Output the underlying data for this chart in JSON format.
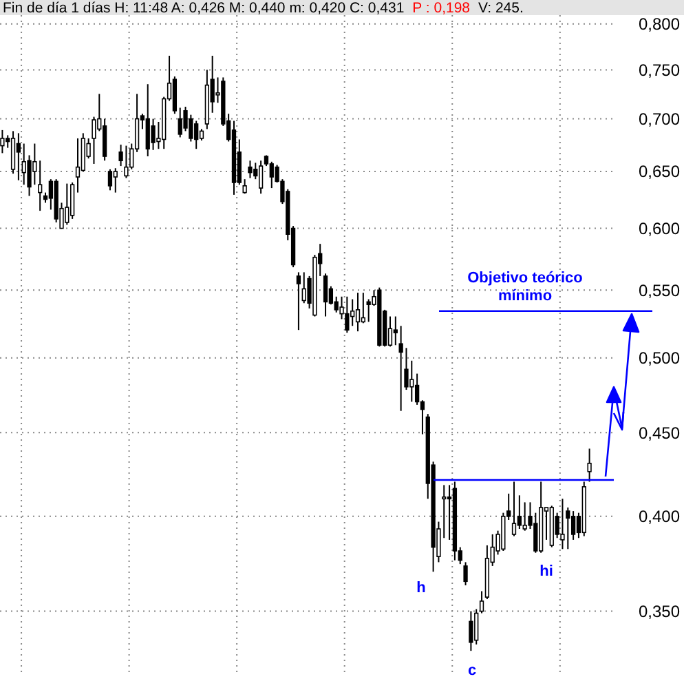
{
  "chart_data": {
    "type": "candlestick",
    "title": "Fin de día 1 días H: 11:48 A: 0,426 M: 0,440 m: 0,420 C: 0,431",
    "annotations": [
      "P : 0,198",
      "V: 245.",
      "h",
      "c",
      "hi"
    ],
    "categories": [
      null,
      null,
      null,
      null,
      null,
      null,
      null,
      null,
      null,
      null,
      null,
      null,
      null,
      null,
      null,
      null,
      null,
      null,
      null,
      null,
      null,
      null,
      null,
      null,
      null,
      null,
      null,
      null,
      null,
      null,
      null,
      null,
      null,
      null,
      null,
      null,
      null,
      null,
      null,
      null,
      null,
      null,
      null,
      null,
      null,
      null,
      null,
      null,
      null,
      null,
      null,
      null,
      null,
      null,
      null,
      null,
      null,
      null,
      null,
      null,
      null,
      null,
      null,
      null,
      null,
      null,
      null,
      null,
      null,
      null,
      null,
      null,
      null,
      null,
      null,
      null,
      null,
      null,
      null,
      null,
      null,
      null,
      null,
      null,
      null,
      null,
      null,
      null,
      null,
      null,
      null,
      null,
      null,
      null,
      null,
      null,
      null,
      null,
      null,
      null,
      null,
      null,
      null,
      null,
      null,
      null,
      null,
      null,
      null,
      null
    ],
    "ohlc": [
      [
        0.674,
        0.689,
        0.667,
        0.681
      ],
      [
        0.681,
        0.684,
        0.672,
        0.678
      ],
      [
        0.652,
        0.688,
        0.648,
        0.681
      ],
      [
        0.676,
        0.686,
        0.642,
        0.668
      ],
      [
        0.649,
        0.676,
        0.638,
        0.659
      ],
      [
        0.66,
        0.665,
        0.628,
        0.636
      ],
      [
        0.65,
        0.676,
        0.638,
        0.659
      ],
      [
        0.631,
        0.66,
        0.615,
        0.638
      ],
      [
        0.628,
        0.631,
        0.622,
        0.625
      ],
      [
        0.641,
        0.643,
        0.616,
        0.626
      ],
      [
        0.641,
        0.643,
        0.605,
        0.608
      ],
      [
        0.6,
        0.622,
        0.6,
        0.617
      ],
      [
        0.605,
        0.639,
        0.603,
        0.618
      ],
      [
        0.611,
        0.64,
        0.608,
        0.638
      ],
      [
        0.645,
        0.681,
        0.631,
        0.654
      ],
      [
        0.651,
        0.686,
        0.65,
        0.681
      ],
      [
        0.664,
        0.681,
        0.662,
        0.676
      ],
      [
        0.681,
        0.702,
        0.657,
        0.699
      ],
      [
        0.69,
        0.725,
        0.688,
        0.7
      ],
      [
        0.693,
        0.7,
        0.66,
        0.664
      ],
      [
        0.65,
        0.652,
        0.633,
        0.637
      ],
      [
        0.645,
        0.653,
        0.631,
        0.65
      ],
      [
        0.668,
        0.675,
        0.655,
        0.66
      ],
      [
        0.646,
        0.674,
        0.644,
        0.654
      ],
      [
        0.654,
        0.676,
        0.652,
        0.671
      ],
      [
        0.671,
        0.725,
        0.668,
        0.7
      ],
      [
        0.703,
        0.705,
        0.69,
        0.699
      ],
      [
        0.7,
        0.735,
        0.664,
        0.671
      ],
      [
        0.693,
        0.7,
        0.67,
        0.677
      ],
      [
        0.678,
        0.697,
        0.671,
        0.681
      ],
      [
        0.68,
        0.722,
        0.671,
        0.72
      ],
      [
        0.72,
        0.765,
        0.718,
        0.736
      ],
      [
        0.74,
        0.743,
        0.705,
        0.708
      ],
      [
        0.7,
        0.711,
        0.682,
        0.685
      ],
      [
        0.708,
        0.712,
        0.688,
        0.691
      ],
      [
        0.7,
        0.704,
        0.678,
        0.681
      ],
      [
        0.695,
        0.698,
        0.671,
        0.68
      ],
      [
        0.681,
        0.69,
        0.679,
        0.688
      ],
      [
        0.695,
        0.75,
        0.69,
        0.734
      ],
      [
        0.74,
        0.765,
        0.706,
        0.717
      ],
      [
        0.724,
        0.742,
        0.716,
        0.726
      ],
      [
        0.738,
        0.742,
        0.693,
        0.695
      ],
      [
        0.698,
        0.705,
        0.678,
        0.68
      ],
      [
        0.689,
        0.698,
        0.629,
        0.64
      ],
      [
        0.668,
        0.68,
        0.638,
        0.64
      ],
      [
        0.631,
        0.643,
        0.63,
        0.637
      ],
      [
        0.654,
        0.66,
        0.644,
        0.649
      ],
      [
        0.652,
        0.658,
        0.643,
        0.646
      ],
      [
        0.635,
        0.66,
        0.63,
        0.655
      ],
      [
        0.664,
        0.665,
        0.655,
        0.657
      ],
      [
        0.657,
        0.659,
        0.635,
        0.645
      ],
      [
        0.654,
        0.656,
        0.64,
        0.641
      ],
      [
        0.641,
        0.643,
        0.621,
        0.623
      ],
      [
        0.632,
        0.634,
        0.59,
        0.595
      ],
      [
        0.6,
        0.602,
        0.568,
        0.57
      ],
      [
        0.561,
        0.564,
        0.52,
        0.555
      ],
      [
        0.542,
        0.564,
        0.54,
        0.551
      ],
      [
        0.559,
        0.561,
        0.536,
        0.54
      ],
      [
        0.531,
        0.578,
        0.53,
        0.576
      ],
      [
        0.579,
        0.587,
        0.561,
        0.571
      ],
      [
        0.561,
        0.563,
        0.53,
        0.541
      ],
      [
        0.551,
        0.553,
        0.539,
        0.54
      ],
      [
        0.541,
        0.545,
        0.533,
        0.535
      ],
      [
        0.532,
        0.545,
        0.528,
        0.537
      ],
      [
        0.532,
        0.545,
        0.518,
        0.52
      ],
      [
        0.53,
        0.543,
        0.523,
        0.534
      ],
      [
        0.526,
        0.548,
        0.519,
        0.535
      ],
      [
        0.526,
        0.548,
        0.525,
        0.529
      ],
      [
        0.541,
        0.543,
        0.526,
        0.539
      ],
      [
        0.539,
        0.55,
        0.538,
        0.545
      ],
      [
        0.55,
        0.552,
        0.508,
        0.509
      ],
      [
        0.534,
        0.535,
        0.508,
        0.509
      ],
      [
        0.509,
        0.53,
        0.508,
        0.521
      ],
      [
        0.52,
        0.53,
        0.509,
        0.518
      ],
      [
        0.51,
        0.523,
        0.464,
        0.504
      ],
      [
        0.492,
        0.507,
        0.478,
        0.48
      ],
      [
        0.48,
        0.498,
        0.47,
        0.485
      ],
      [
        0.481,
        0.489,
        0.468,
        0.47
      ],
      [
        0.47,
        0.471,
        0.449,
        0.465
      ],
      [
        0.46,
        0.462,
        0.41,
        0.419
      ],
      [
        0.43,
        0.432,
        0.37,
        0.383
      ],
      [
        0.378,
        0.397,
        0.375,
        0.393
      ],
      [
        0.41,
        0.418,
        0.388,
        0.411
      ],
      [
        0.411,
        0.418,
        0.387,
        0.41
      ],
      [
        0.416,
        0.42,
        0.376,
        0.381
      ],
      [
        0.381,
        0.383,
        0.374,
        0.376
      ],
      [
        0.373,
        0.375,
        0.363,
        0.365
      ],
      [
        0.345,
        0.35,
        0.331,
        0.335
      ],
      [
        0.336,
        0.351,
        0.334,
        0.349
      ],
      [
        0.35,
        0.36,
        0.349,
        0.355
      ],
      [
        0.357,
        0.384,
        0.356,
        0.377
      ],
      [
        0.375,
        0.39,
        0.373,
        0.383
      ],
      [
        0.381,
        0.392,
        0.379,
        0.39
      ],
      [
        0.382,
        0.402,
        0.381,
        0.4
      ],
      [
        0.403,
        0.413,
        0.398,
        0.4
      ],
      [
        0.39,
        0.42,
        0.389,
        0.396
      ],
      [
        0.4,
        0.412,
        0.393,
        0.395
      ],
      [
        0.393,
        0.408,
        0.392,
        0.395
      ],
      [
        0.4,
        0.408,
        0.393,
        0.395
      ],
      [
        0.396,
        0.402,
        0.38,
        0.381
      ],
      [
        0.381,
        0.42,
        0.38,
        0.405
      ],
      [
        0.403,
        0.405,
        0.387,
        0.405
      ],
      [
        0.384,
        0.406,
        0.383,
        0.405
      ],
      [
        0.4,
        0.402,
        0.388,
        0.39
      ],
      [
        0.387,
        0.41,
        0.382,
        0.39
      ],
      [
        0.403,
        0.405,
        0.382,
        0.399
      ],
      [
        0.4,
        0.403,
        0.387,
        0.39
      ],
      [
        0.4,
        0.402,
        0.388,
        0.391
      ],
      [
        0.391,
        0.42,
        0.389,
        0.417
      ],
      [
        0.426,
        0.44,
        0.42,
        0.431
      ]
    ],
    "ylim": [
      0.32,
      0.81
    ],
    "log": true,
    "grid": true,
    "yticks": [
      {
        "value": 0.35,
        "label": "0,350"
      },
      {
        "value": 0.4,
        "label": "0,400"
      },
      {
        "value": 0.45,
        "label": "0,450"
      },
      {
        "value": 0.5,
        "label": "0,500"
      },
      {
        "value": 0.55,
        "label": "0,550"
      },
      {
        "value": 0.6,
        "label": "0,600"
      },
      {
        "value": 0.65,
        "label": "0,650"
      },
      {
        "value": 0.7,
        "label": "0,700"
      },
      {
        "value": 0.75,
        "label": "0,750"
      },
      {
        "value": 0.8,
        "label": "0,800"
      }
    ],
    "ref_lines": [
      {
        "axis": "y",
        "value": 0.534,
        "label": "Objetivo teórico mínimo",
        "color": "#0000ff"
      },
      {
        "axis": "y",
        "value": 0.421,
        "color": "#0000ff"
      }
    ]
  }
}
